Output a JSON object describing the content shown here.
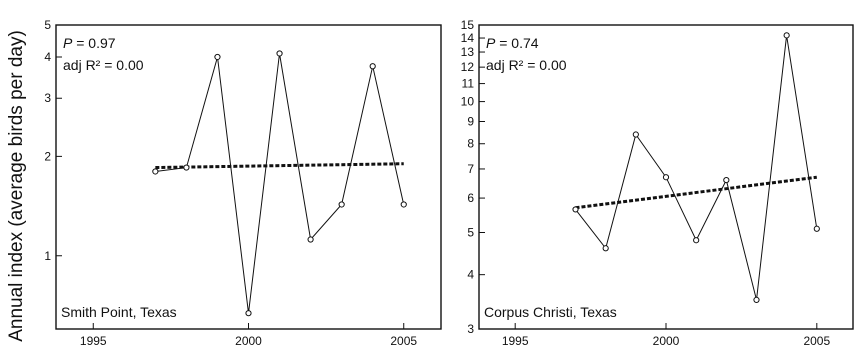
{
  "figure": {
    "ylabel": "Annual index (average birds per day)"
  },
  "chart_data": [
    {
      "type": "line",
      "y_scale": "log",
      "xlim": [
        1993.8,
        2006.2
      ],
      "ylim": [
        0.6,
        5
      ],
      "x_ticks": [
        1995,
        2000,
        2005
      ],
      "y_ticks": [
        1,
        2,
        3,
        4,
        5
      ],
      "panel_label": "Smith Point, Texas",
      "stats": {
        "p_label": "P",
        "p_value": "= 0.97",
        "r2": "adj R² = 0.00"
      },
      "series": [
        {
          "x": [
            1997,
            1998,
            1999,
            2000,
            2001,
            2002,
            2003,
            2004,
            2005
          ],
          "y": [
            1.8,
            1.85,
            4.0,
            0.67,
            4.1,
            1.12,
            1.43,
            3.75,
            1.43
          ]
        }
      ],
      "trend": {
        "x": [
          1997,
          2005
        ],
        "y": [
          1.85,
          1.9
        ]
      }
    },
    {
      "type": "line",
      "y_scale": "log",
      "xlim": [
        1993.8,
        2006.2
      ],
      "ylim": [
        3,
        15
      ],
      "x_ticks": [
        1995,
        2000,
        2005
      ],
      "y_ticks": [
        3,
        4,
        5,
        6,
        7,
        8,
        9,
        10,
        11,
        12,
        13,
        14,
        15
      ],
      "panel_label": "Corpus Christi, Texas",
      "stats": {
        "p_label": "P",
        "p_value": "= 0.74",
        "r2": "adj R² = 0.00"
      },
      "series": [
        {
          "x": [
            1997,
            1998,
            1999,
            2000,
            2001,
            2002,
            2003,
            2004,
            2005
          ],
          "y": [
            5.65,
            4.6,
            8.4,
            6.7,
            4.8,
            6.6,
            3.5,
            14.2,
            5.1
          ]
        }
      ],
      "trend": {
        "x": [
          1997,
          2005
        ],
        "y": [
          5.7,
          6.7
        ]
      }
    }
  ]
}
